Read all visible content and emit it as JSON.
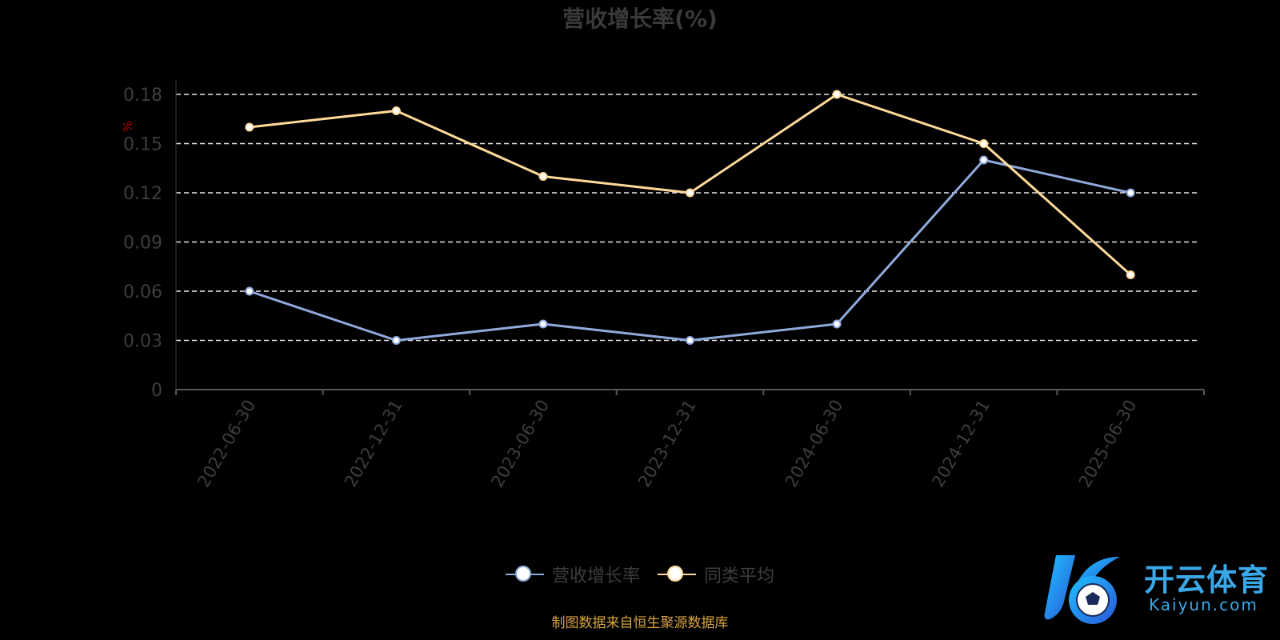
{
  "chart_data": {
    "type": "line",
    "title": "营收增长率(%)",
    "ylabel": "%",
    "xlabel": "",
    "categories": [
      "2022-06-30",
      "2022-12-31",
      "2023-06-30",
      "2023-12-31",
      "2024-06-30",
      "2024-12-31",
      "2025-06-30"
    ],
    "ylim": [
      0,
      0.18
    ],
    "yticks": [
      "0",
      "0.03",
      "0.06",
      "0.09",
      "0.12",
      "0.15",
      "0.18"
    ],
    "grid": true,
    "legend_position": "bottom",
    "series": [
      {
        "name": "营收增长率",
        "color": "#8faadc",
        "values": [
          0.06,
          0.03,
          0.04,
          0.03,
          0.04,
          0.14,
          0.12
        ]
      },
      {
        "name": "同类平均",
        "color": "#ffd99a",
        "values": [
          0.16,
          0.17,
          0.13,
          0.12,
          0.18,
          0.15,
          0.07
        ]
      }
    ]
  },
  "footer": {
    "source": "制图数据来自恒生聚源数据库"
  },
  "logo": {
    "cn": "开云体育",
    "en": "Kaiyun.com"
  }
}
